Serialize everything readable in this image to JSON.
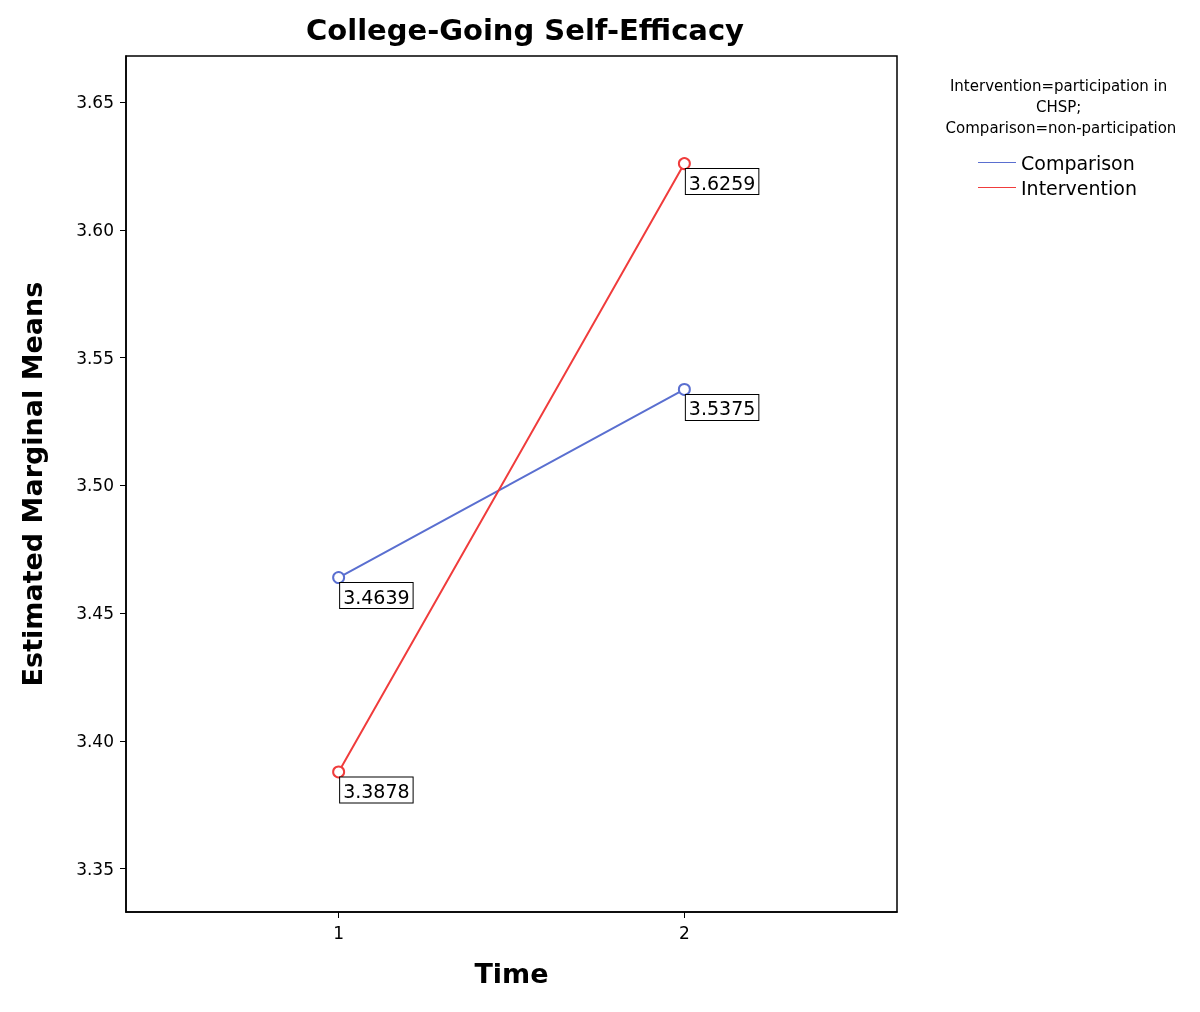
{
  "chart_data": {
    "type": "line",
    "title": "College-Going Self-Efficacy",
    "xlabel": "Time",
    "ylabel": "Estimated Marginal Means",
    "legend_title": "Intervention=participation in CHSP; Comparison=non-participation",
    "x": [
      1,
      2
    ],
    "xlim": [
      0.385,
      2.615
    ],
    "xticks": [
      1,
      2
    ],
    "ylim": [
      3.333,
      3.668
    ],
    "yticks": [
      3.35,
      {
        "value": 3.4,
        "label": "3.40"
      },
      3.45,
      {
        "value": 3.5,
        "label": "3.50"
      },
      3.55,
      {
        "value": 3.6,
        "label": "3.60"
      },
      3.65
    ],
    "series": [
      {
        "name": "Comparison",
        "color": "#5a6fd0",
        "values": [
          3.4639,
          3.5375
        ]
      },
      {
        "name": "Intervention",
        "color": "#f03c3c",
        "values": [
          3.3878,
          3.6259
        ]
      }
    ],
    "marker": "circle",
    "line_style": "solid",
    "data_labels": true,
    "grid": false,
    "legend": "top right"
  }
}
